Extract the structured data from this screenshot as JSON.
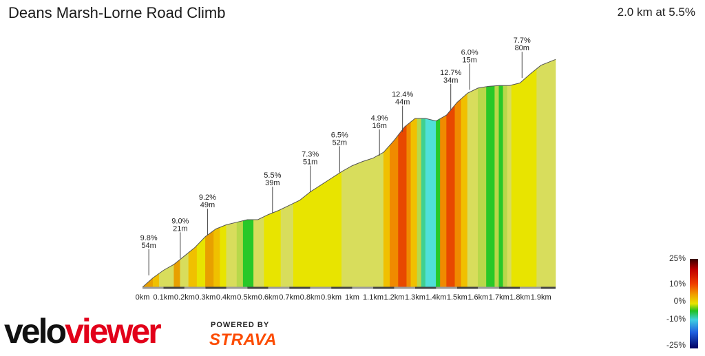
{
  "header": {
    "title": "Deans Marsh-Lorne Road Climb",
    "summary": "2.0 km at 5.5%"
  },
  "branding": {
    "logo_text": "veloviewer",
    "powered_by": "POWERED BY",
    "strava": "STRAVA"
  },
  "gradient_scale": {
    "labels": [
      "25%",
      "10%",
      "0%",
      "-10%",
      "-25%"
    ]
  },
  "chart_data": {
    "type": "area",
    "title": "Deans Marsh-Lorne Road Climb",
    "xlabel": "",
    "ylabel": "",
    "x_unit": "km",
    "xlim": [
      0,
      1.97
    ],
    "ylim": [
      0,
      110
    ],
    "x_ticks": [
      "0km",
      "0.1km",
      "0.2km",
      "0.3km",
      "0.4km",
      "0.5km",
      "0.6km",
      "0.7km",
      "0.8km",
      "0.9km",
      "1km",
      "1.1km",
      "1.2km",
      "1.3km",
      "1.4km",
      "1.5km",
      "1.6km",
      "1.7km",
      "1.8km",
      "1.9km"
    ],
    "elevation_profile": [
      {
        "x": 0.0,
        "y": 0
      },
      {
        "x": 0.05,
        "y": 5.5
      },
      {
        "x": 0.1,
        "y": 10
      },
      {
        "x": 0.15,
        "y": 13.5
      },
      {
        "x": 0.2,
        "y": 18.5
      },
      {
        "x": 0.25,
        "y": 23.5
      },
      {
        "x": 0.3,
        "y": 30
      },
      {
        "x": 0.35,
        "y": 34.5
      },
      {
        "x": 0.4,
        "y": 37
      },
      {
        "x": 0.45,
        "y": 38.5
      },
      {
        "x": 0.5,
        "y": 40
      },
      {
        "x": 0.55,
        "y": 40
      },
      {
        "x": 0.6,
        "y": 43
      },
      {
        "x": 0.65,
        "y": 45.5
      },
      {
        "x": 0.7,
        "y": 48.5
      },
      {
        "x": 0.75,
        "y": 51.5
      },
      {
        "x": 0.8,
        "y": 56.5
      },
      {
        "x": 0.85,
        "y": 60.5
      },
      {
        "x": 0.9,
        "y": 64.5
      },
      {
        "x": 0.95,
        "y": 68.5
      },
      {
        "x": 1.0,
        "y": 72
      },
      {
        "x": 1.05,
        "y": 74.5
      },
      {
        "x": 1.1,
        "y": 76.5
      },
      {
        "x": 1.15,
        "y": 80
      },
      {
        "x": 1.2,
        "y": 87
      },
      {
        "x": 1.25,
        "y": 95
      },
      {
        "x": 1.3,
        "y": 100
      },
      {
        "x": 1.35,
        "y": 100
      },
      {
        "x": 1.4,
        "y": 98.5
      },
      {
        "x": 1.45,
        "y": 102
      },
      {
        "x": 1.5,
        "y": 109.5
      },
      {
        "x": 1.55,
        "y": 115
      },
      {
        "x": 1.6,
        "y": 118
      },
      {
        "x": 1.65,
        "y": 119
      },
      {
        "x": 1.7,
        "y": 119.5
      },
      {
        "x": 1.75,
        "y": 119.5
      },
      {
        "x": 1.8,
        "y": 121
      },
      {
        "x": 1.85,
        "y": 126.5
      },
      {
        "x": 1.9,
        "y": 131.5
      },
      {
        "x": 1.97,
        "y": 135
      }
    ],
    "segments": [
      {
        "x0": 0.0,
        "x1": 0.05,
        "color": "#e8a000"
      },
      {
        "x0": 0.05,
        "x1": 0.08,
        "color": "#f0c000"
      },
      {
        "x0": 0.08,
        "x1": 0.15,
        "color": "#d8dd5c"
      },
      {
        "x0": 0.15,
        "x1": 0.18,
        "color": "#e8a000"
      },
      {
        "x0": 0.18,
        "x1": 0.22,
        "color": "#d8dd5c"
      },
      {
        "x0": 0.22,
        "x1": 0.26,
        "color": "#f0c000"
      },
      {
        "x0": 0.26,
        "x1": 0.3,
        "color": "#e8e400"
      },
      {
        "x0": 0.3,
        "x1": 0.34,
        "color": "#e8a000"
      },
      {
        "x0": 0.34,
        "x1": 0.37,
        "color": "#f0c000"
      },
      {
        "x0": 0.37,
        "x1": 0.4,
        "color": "#e8e400"
      },
      {
        "x0": 0.4,
        "x1": 0.45,
        "color": "#d8dd5c"
      },
      {
        "x0": 0.45,
        "x1": 0.48,
        "color": "#b8d84a"
      },
      {
        "x0": 0.48,
        "x1": 0.53,
        "color": "#28c828"
      },
      {
        "x0": 0.53,
        "x1": 0.58,
        "color": "#d8dd5c"
      },
      {
        "x0": 0.58,
        "x1": 0.66,
        "color": "#e8e400"
      },
      {
        "x0": 0.66,
        "x1": 0.72,
        "color": "#d8dd5c"
      },
      {
        "x0": 0.72,
        "x1": 0.82,
        "color": "#e8e400"
      },
      {
        "x0": 0.82,
        "x1": 0.95,
        "color": "#e8e400"
      },
      {
        "x0": 0.95,
        "x1": 1.15,
        "color": "#d8dd5c"
      },
      {
        "x0": 1.15,
        "x1": 1.18,
        "color": "#f0c000"
      },
      {
        "x0": 1.18,
        "x1": 1.22,
        "color": "#f08a00"
      },
      {
        "x0": 1.22,
        "x1": 1.26,
        "color": "#e84800"
      },
      {
        "x0": 1.26,
        "x1": 1.28,
        "color": "#f08a00"
      },
      {
        "x0": 1.28,
        "x1": 1.31,
        "color": "#f0c000"
      },
      {
        "x0": 1.31,
        "x1": 1.33,
        "color": "#b8d84a"
      },
      {
        "x0": 1.33,
        "x1": 1.35,
        "color": "#40d090"
      },
      {
        "x0": 1.35,
        "x1": 1.4,
        "color": "#50e0d8"
      },
      {
        "x0": 1.4,
        "x1": 1.42,
        "color": "#28c828"
      },
      {
        "x0": 1.42,
        "x1": 1.45,
        "color": "#f08a00"
      },
      {
        "x0": 1.45,
        "x1": 1.49,
        "color": "#e84800"
      },
      {
        "x0": 1.49,
        "x1": 1.52,
        "color": "#f08a00"
      },
      {
        "x0": 1.52,
        "x1": 1.55,
        "color": "#f0c000"
      },
      {
        "x0": 1.55,
        "x1": 1.6,
        "color": "#d8dd5c"
      },
      {
        "x0": 1.6,
        "x1": 1.64,
        "color": "#b8d84a"
      },
      {
        "x0": 1.64,
        "x1": 1.68,
        "color": "#28c828"
      },
      {
        "x0": 1.68,
        "x1": 1.7,
        "color": "#b8d84a"
      },
      {
        "x0": 1.7,
        "x1": 1.72,
        "color": "#28c828"
      },
      {
        "x0": 1.72,
        "x1": 1.74,
        "color": "#b8d84a"
      },
      {
        "x0": 1.74,
        "x1": 1.76,
        "color": "#d8dd5c"
      },
      {
        "x0": 1.76,
        "x1": 1.88,
        "color": "#e8e400"
      },
      {
        "x0": 1.88,
        "x1": 1.97,
        "color": "#d8dd5c"
      }
    ],
    "annotations": [
      {
        "x": 0.03,
        "y": 7,
        "grade": "9.8%",
        "length": "54m"
      },
      {
        "x": 0.18,
        "y": 17,
        "grade": "9.0%",
        "length": "21m"
      },
      {
        "x": 0.31,
        "y": 31,
        "grade": "9.2%",
        "length": "49m"
      },
      {
        "x": 0.62,
        "y": 44,
        "grade": "5.5%",
        "length": "39m"
      },
      {
        "x": 0.8,
        "y": 56.5,
        "grade": "7.3%",
        "length": "51m"
      },
      {
        "x": 0.94,
        "y": 68,
        "grade": "6.5%",
        "length": "52m"
      },
      {
        "x": 1.13,
        "y": 78,
        "grade": "4.9%",
        "length": "16m"
      },
      {
        "x": 1.24,
        "y": 92,
        "grade": "12.4%",
        "length": "44m"
      },
      {
        "x": 1.47,
        "y": 105,
        "grade": "12.7%",
        "length": "34m"
      },
      {
        "x": 1.56,
        "y": 117,
        "grade": "6.0%",
        "length": "15m"
      },
      {
        "x": 1.81,
        "y": 124,
        "grade": "7.7%",
        "length": "80m"
      }
    ]
  }
}
